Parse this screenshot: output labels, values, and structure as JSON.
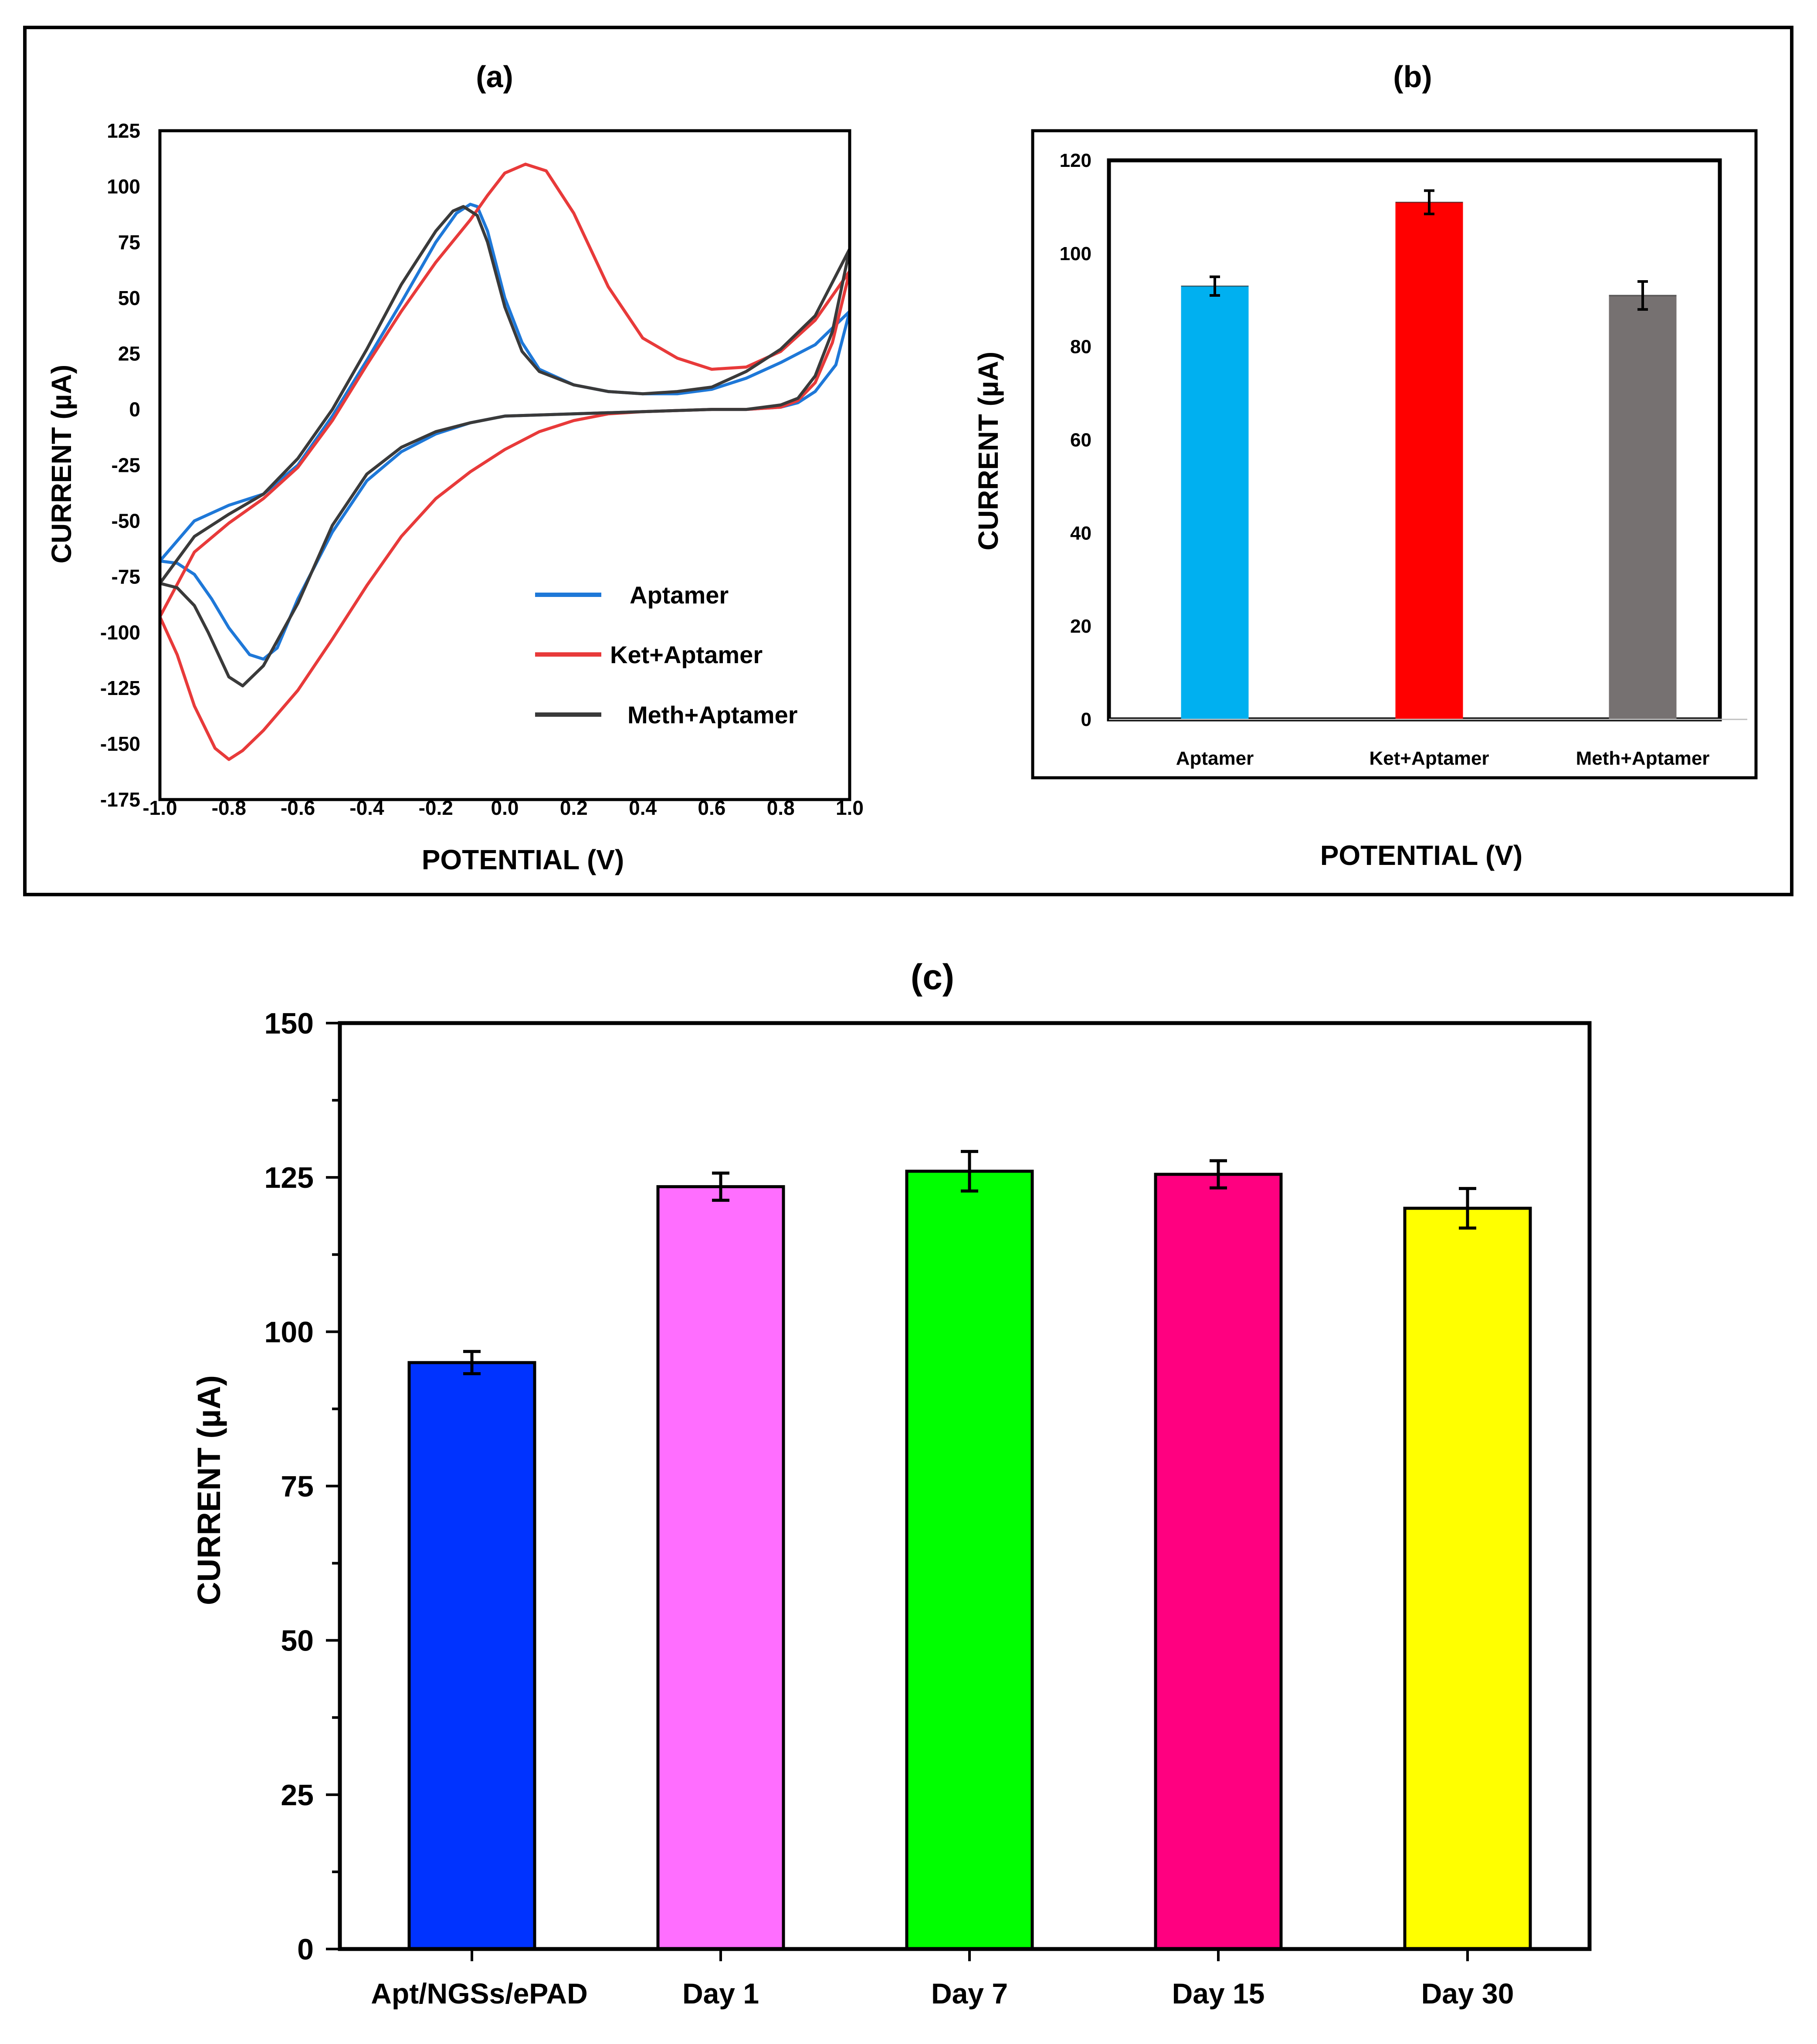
{
  "chart_data": [
    {
      "id": "a",
      "type": "line",
      "panel_label": "(a)",
      "xlabel": "POTENTIAL (V)",
      "ylabel": "CURRENT (µA)",
      "xlim": [
        -1.0,
        1.0
      ],
      "ylim": [
        -175,
        125
      ],
      "xticks": [
        "-1.0",
        "-0.8",
        "-0.6",
        "-0.4",
        "-0.2",
        "0.0",
        "0.2",
        "0.4",
        "0.6",
        "0.8",
        "1.0"
      ],
      "yticks": [
        "125",
        "100",
        "75",
        "50",
        "25",
        "0",
        "-25",
        "-50",
        "-75",
        "-100",
        "-125",
        "-150",
        "-175"
      ],
      "legend": [
        "Aptamer",
        "Ket+Aptamer",
        "Meth+Aptamer"
      ],
      "series": [
        {
          "name": "Aptamer",
          "color": "#1e78d8",
          "points": [
            [
              -1.0,
              -68
            ],
            [
              -0.9,
              -50
            ],
            [
              -0.8,
              -43
            ],
            [
              -0.7,
              -38
            ],
            [
              -0.6,
              -25
            ],
            [
              -0.5,
              -3
            ],
            [
              -0.4,
              22
            ],
            [
              -0.3,
              48
            ],
            [
              -0.2,
              75
            ],
            [
              -0.14,
              88
            ],
            [
              -0.1,
              92
            ],
            [
              -0.08,
              91
            ],
            [
              -0.05,
              80
            ],
            [
              0.0,
              50
            ],
            [
              0.05,
              30
            ],
            [
              0.1,
              18
            ],
            [
              0.2,
              11
            ],
            [
              0.3,
              8
            ],
            [
              0.4,
              7
            ],
            [
              0.5,
              7
            ],
            [
              0.6,
              9
            ],
            [
              0.7,
              14
            ],
            [
              0.8,
              21
            ],
            [
              0.9,
              29
            ],
            [
              1.0,
              44
            ],
            [
              0.96,
              20
            ],
            [
              0.9,
              8
            ],
            [
              0.85,
              3
            ],
            [
              0.8,
              1
            ],
            [
              0.7,
              0
            ],
            [
              0.6,
              0
            ],
            [
              0.4,
              -1
            ],
            [
              0.2,
              -2
            ],
            [
              0.0,
              -3
            ],
            [
              -0.1,
              -6
            ],
            [
              -0.2,
              -11
            ],
            [
              -0.3,
              -19
            ],
            [
              -0.4,
              -32
            ],
            [
              -0.5,
              -55
            ],
            [
              -0.6,
              -85
            ],
            [
              -0.66,
              -107
            ],
            [
              -0.7,
              -112
            ],
            [
              -0.74,
              -110
            ],
            [
              -0.8,
              -98
            ],
            [
              -0.85,
              -85
            ],
            [
              -0.9,
              -74
            ],
            [
              -0.95,
              -69
            ],
            [
              -1.0,
              -68
            ]
          ]
        },
        {
          "name": "Ket+Aptamer",
          "color": "#e83a3a",
          "points": [
            [
              -1.0,
              -93
            ],
            [
              -0.9,
              -64
            ],
            [
              -0.8,
              -51
            ],
            [
              -0.7,
              -40
            ],
            [
              -0.6,
              -26
            ],
            [
              -0.5,
              -5
            ],
            [
              -0.4,
              20
            ],
            [
              -0.3,
              44
            ],
            [
              -0.2,
              66
            ],
            [
              -0.1,
              85
            ],
            [
              -0.05,
              96
            ],
            [
              0.0,
              106
            ],
            [
              0.06,
              110
            ],
            [
              0.12,
              107
            ],
            [
              0.2,
              88
            ],
            [
              0.3,
              55
            ],
            [
              0.4,
              32
            ],
            [
              0.5,
              23
            ],
            [
              0.6,
              18
            ],
            [
              0.7,
              19
            ],
            [
              0.8,
              26
            ],
            [
              0.9,
              40
            ],
            [
              1.0,
              62
            ],
            [
              0.95,
              30
            ],
            [
              0.9,
              12
            ],
            [
              0.85,
              4
            ],
            [
              0.8,
              1
            ],
            [
              0.7,
              0
            ],
            [
              0.6,
              0
            ],
            [
              0.4,
              -1
            ],
            [
              0.3,
              -2
            ],
            [
              0.2,
              -5
            ],
            [
              0.1,
              -10
            ],
            [
              0.0,
              -18
            ],
            [
              -0.1,
              -28
            ],
            [
              -0.2,
              -40
            ],
            [
              -0.3,
              -57
            ],
            [
              -0.4,
              -79
            ],
            [
              -0.5,
              -103
            ],
            [
              -0.6,
              -126
            ],
            [
              -0.7,
              -144
            ],
            [
              -0.76,
              -153
            ],
            [
              -0.8,
              -157
            ],
            [
              -0.84,
              -152
            ],
            [
              -0.9,
              -133
            ],
            [
              -0.95,
              -110
            ],
            [
              -1.0,
              -93
            ]
          ]
        },
        {
          "name": "Meth+Aptamer",
          "color": "#3a3a3a",
          "points": [
            [
              -1.0,
              -78
            ],
            [
              -0.9,
              -57
            ],
            [
              -0.8,
              -47
            ],
            [
              -0.7,
              -38
            ],
            [
              -0.6,
              -22
            ],
            [
              -0.5,
              0
            ],
            [
              -0.4,
              27
            ],
            [
              -0.3,
              56
            ],
            [
              -0.2,
              80
            ],
            [
              -0.15,
              89
            ],
            [
              -0.12,
              91
            ],
            [
              -0.08,
              87
            ],
            [
              -0.05,
              75
            ],
            [
              0.0,
              46
            ],
            [
              0.05,
              26
            ],
            [
              0.1,
              17
            ],
            [
              0.2,
              11
            ],
            [
              0.3,
              8
            ],
            [
              0.4,
              7
            ],
            [
              0.5,
              8
            ],
            [
              0.6,
              10
            ],
            [
              0.7,
              17
            ],
            [
              0.8,
              27
            ],
            [
              0.9,
              42
            ],
            [
              1.0,
              72
            ],
            [
              0.95,
              35
            ],
            [
              0.9,
              15
            ],
            [
              0.85,
              5
            ],
            [
              0.8,
              2
            ],
            [
              0.7,
              0
            ],
            [
              0.6,
              0
            ],
            [
              0.4,
              -1
            ],
            [
              0.2,
              -2
            ],
            [
              0.0,
              -3
            ],
            [
              -0.1,
              -6
            ],
            [
              -0.2,
              -10
            ],
            [
              -0.3,
              -17
            ],
            [
              -0.4,
              -29
            ],
            [
              -0.5,
              -52
            ],
            [
              -0.6,
              -87
            ],
            [
              -0.7,
              -115
            ],
            [
              -0.76,
              -124
            ],
            [
              -0.8,
              -120
            ],
            [
              -0.86,
              -100
            ],
            [
              -0.9,
              -88
            ],
            [
              -0.95,
              -80
            ],
            [
              -1.0,
              -78
            ]
          ]
        }
      ]
    },
    {
      "id": "b",
      "type": "bar",
      "panel_label": "(b)",
      "xlabel": "POTENTIAL (V)",
      "ylabel": "CURRENT (µA)",
      "ylim": [
        0,
        120
      ],
      "yticks": [
        "0",
        "20",
        "40",
        "60",
        "80",
        "100",
        "120"
      ],
      "categories": [
        "Aptamer",
        "Ket+Aptamer",
        "Meth+Aptamer"
      ],
      "values": [
        93,
        111,
        91
      ],
      "errors": [
        2,
        2.5,
        3
      ],
      "colors": [
        "#00b0f0",
        "#ff0000",
        "#767171"
      ]
    },
    {
      "id": "c",
      "type": "bar",
      "panel_label": "(c)",
      "xlabel": "",
      "ylabel": "CURRENT (µA)",
      "ylim": [
        0,
        150
      ],
      "yticks": [
        "0",
        "25",
        "50",
        "75",
        "100",
        "125",
        "150"
      ],
      "categories": [
        "Apt/NGSs/ePAD",
        "Day 1",
        "Day 7",
        "Day 15",
        "Day 30"
      ],
      "values": [
        95,
        123.5,
        126,
        125.5,
        120
      ],
      "errors": [
        1.8,
        2.2,
        3.2,
        2.2,
        3.2
      ],
      "colors": [
        "#0033ff",
        "#ff6eff",
        "#00ff00",
        "#ff0080",
        "#ffff00"
      ]
    }
  ]
}
